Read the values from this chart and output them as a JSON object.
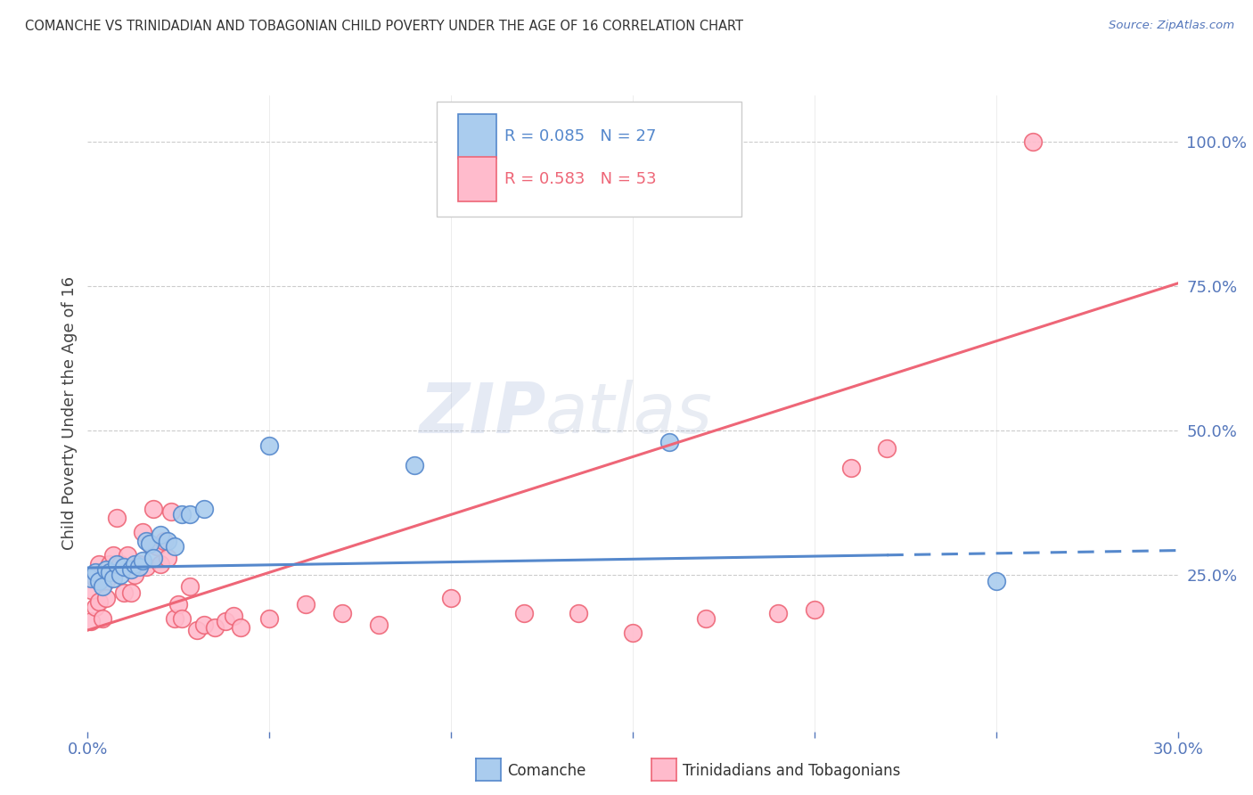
{
  "title": "COMANCHE VS TRINIDADIAN AND TOBAGONIAN CHILD POVERTY UNDER THE AGE OF 16 CORRELATION CHART",
  "source": "Source: ZipAtlas.com",
  "ylabel": "Child Poverty Under the Age of 16",
  "xlim": [
    0.0,
    0.3
  ],
  "ylim": [
    -0.02,
    1.08
  ],
  "xticks": [
    0.0,
    0.05,
    0.1,
    0.15,
    0.2,
    0.25,
    0.3
  ],
  "xticklabels": [
    "0.0%",
    "",
    "",
    "",
    "",
    "",
    "30.0%"
  ],
  "yticks_right": [
    0.25,
    0.5,
    0.75,
    1.0
  ],
  "ytick_labels_right": [
    "25.0%",
    "50.0%",
    "75.0%",
    "100.0%"
  ],
  "blue_color": "#5588CC",
  "pink_color": "#EE6677",
  "blue_fill": "#AACCEE",
  "pink_fill": "#FFBBCC",
  "legend_label_blue": "Comanche",
  "legend_label_pink": "Trinidadians and Tobagonians",
  "watermark_zip": "ZIP",
  "watermark_atlas": "atlas",
  "blue_line_x": [
    0.0,
    0.3
  ],
  "blue_line_y": [
    0.263,
    0.293
  ],
  "blue_line_dash_start": 0.22,
  "pink_line_x": [
    0.0,
    0.3
  ],
  "pink_line_y": [
    0.155,
    0.755
  ],
  "blue_scatter_x": [
    0.001,
    0.002,
    0.003,
    0.004,
    0.005,
    0.006,
    0.007,
    0.008,
    0.009,
    0.01,
    0.012,
    0.013,
    0.014,
    0.015,
    0.016,
    0.017,
    0.018,
    0.02,
    0.022,
    0.024,
    0.026,
    0.028,
    0.032,
    0.05,
    0.09,
    0.16,
    0.25
  ],
  "blue_scatter_y": [
    0.245,
    0.255,
    0.24,
    0.23,
    0.26,
    0.255,
    0.245,
    0.27,
    0.25,
    0.265,
    0.26,
    0.27,
    0.265,
    0.275,
    0.31,
    0.305,
    0.28,
    0.32,
    0.31,
    0.3,
    0.355,
    0.355,
    0.365,
    0.475,
    0.44,
    0.48,
    0.24
  ],
  "pink_scatter_x": [
    0.001,
    0.001,
    0.002,
    0.002,
    0.003,
    0.003,
    0.004,
    0.004,
    0.005,
    0.005,
    0.006,
    0.007,
    0.008,
    0.008,
    0.009,
    0.01,
    0.011,
    0.012,
    0.013,
    0.014,
    0.015,
    0.016,
    0.017,
    0.018,
    0.019,
    0.02,
    0.021,
    0.022,
    0.023,
    0.024,
    0.025,
    0.026,
    0.028,
    0.03,
    0.032,
    0.035,
    0.038,
    0.04,
    0.042,
    0.05,
    0.06,
    0.07,
    0.08,
    0.1,
    0.12,
    0.135,
    0.15,
    0.17,
    0.19,
    0.2,
    0.21,
    0.22,
    0.26
  ],
  "pink_scatter_y": [
    0.225,
    0.17,
    0.245,
    0.195,
    0.27,
    0.205,
    0.255,
    0.175,
    0.24,
    0.21,
    0.27,
    0.285,
    0.35,
    0.26,
    0.27,
    0.22,
    0.285,
    0.22,
    0.25,
    0.27,
    0.325,
    0.265,
    0.305,
    0.365,
    0.3,
    0.27,
    0.31,
    0.28,
    0.36,
    0.175,
    0.2,
    0.175,
    0.23,
    0.155,
    0.165,
    0.16,
    0.17,
    0.18,
    0.16,
    0.175,
    0.2,
    0.185,
    0.165,
    0.21,
    0.185,
    0.185,
    0.15,
    0.175,
    0.185,
    0.19,
    0.435,
    0.47,
    1.0
  ],
  "background_color": "#FFFFFF",
  "grid_color": "#CCCCCC",
  "axis_label_color": "#5577BB",
  "title_color": "#333333"
}
